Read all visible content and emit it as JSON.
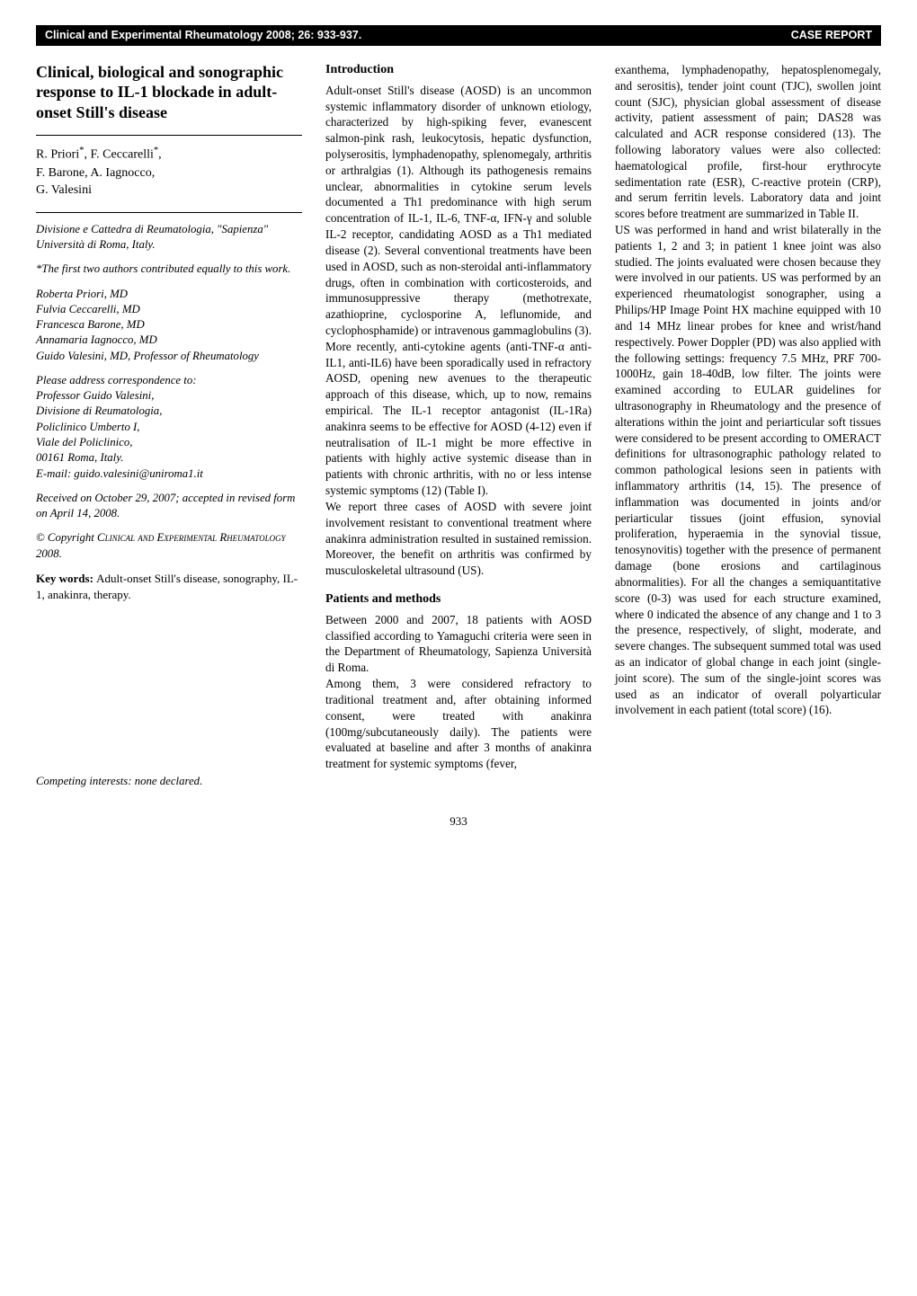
{
  "header": {
    "left": "Clinical and Experimental Rheumatology 2008; 26: 933-937.",
    "right": "CASE REPORT"
  },
  "title": "Clinical, biological and sonographic response to IL-1 blockade in adult-onset Still's disease",
  "authors": "R. Priori*, F. Ceccarelli*, F. Barone, A. Iagnocco, G. Valesini",
  "affiliation": "Divisione e Cattedra di Reumatologia, \"Sapienza\" Università di Roma, Italy.",
  "equal_contrib": "*The first two authors contributed equally to this work.",
  "name_lines": {
    "a": "Roberta Priori, MD",
    "b": "Fulvia Ceccarelli, MD",
    "c": "Francesca Barone, MD",
    "d": "Annamaria Iagnocco, MD",
    "e": "Guido Valesini, MD, Professor of Rheumatology"
  },
  "correspondence": {
    "intro": "Please address correspondence to:",
    "name": "Professor Guido Valesini,",
    "l1": "Divisione di Reumatologia,",
    "l2": "Policlinico Umberto I,",
    "l3": "Viale del Policlinico,",
    "l4": "00161 Roma, Italy.",
    "email": "E-mail: guido.valesini@uniroma1.it"
  },
  "received": "Received on October 29, 2007; accepted in revised form on April 14, 2008.",
  "copyright_prefix": "© Copyright ",
  "copyright_sc": "Clinical and Experimental Rheumatology ",
  "copyright_year": "2008.",
  "keywords_label": "Key words: ",
  "keywords_text": "Adult-onset Still's disease, sonography, IL-1, anakinra, therapy.",
  "competing": "Competing interests: none declared.",
  "intro_heading": "Introduction",
  "intro_body_1": "Adult-onset Still's disease (AOSD) is an uncommon systemic inflammatory disorder of unknown etiology, characterized by high-spiking fever, evanescent salmon-pink rash, leukocytosis, hepatic dysfunction, polyserositis, lymphadenopathy, splenomegaly, arthritis or arthralgias (1). Although its pathogenesis remains unclear, abnormalities in cytokine serum levels documented a Th1 predominance with high serum concentration of IL-1, IL-6, TNF-α, IFN-γ and soluble IL-2 receptor, candidating AOSD as a Th1 mediated disease (2). Several conventional treatments have been used in AOSD, such as non-steroidal anti-inflammatory drugs, often in combination with corticosteroids, and immunosuppressive therapy (methotrexate, azathioprine, cyclosporine A, leflunomide, and cyclophosphamide) or intravenous gammaglobulins (3). More recently, anti-cytokine agents (anti-TNF-α anti-IL1, anti-IL6) have been sporadically used in refractory AOSD, opening new avenues to the therapeutic approach of this disease, which, up to now, remains empirical. The IL-1 receptor antagonist (IL-1Ra) anakinra seems to be effective for AOSD (4-12) even if neutralisation of IL-1 might be more effective in patients with highly active systemic disease than in patients with chronic arthritis, with no or less intense systemic symptoms (12) (Table I).",
  "intro_body_2": "We report three cases of AOSD with severe joint involvement resistant to conventional treatment where anakinra administration resulted in sustained remission. Moreover, the benefit on arthritis was confirmed by musculoskeletal ultrasound (US).",
  "methods_heading": "Patients and methods",
  "methods_body_1": "Between 2000 and 2007, 18 patients with AOSD classified according to Yamaguchi criteria were seen in the Department of Rheumatology, Sapienza Università di Roma.",
  "methods_body_2": "Among them, 3 were considered refractory to traditional treatment and, after obtaining informed consent, were treated with anakinra (100mg/subcutaneously daily). The patients were evaluated at baseline and after 3 months of anakinra treatment for systemic symptoms (fever,",
  "col3_body_1": "exanthema, lymphadenopathy, hepatosplenomegaly, and serositis), tender joint count (TJC), swollen joint count (SJC), physician global assessment of disease activity, patient assessment of pain; DAS28 was calculated and ACR response considered (13). The following laboratory values were also collected: haematological profile, first-hour erythrocyte sedimentation rate (ESR), C-reactive protein (CRP), and serum ferritin levels. Laboratory data and joint scores before treatment are summarized in Table II.",
  "col3_body_2": "US was performed in hand and wrist bilaterally in the patients 1, 2 and 3; in patient 1 knee joint was also studied. The joints evaluated were chosen because they were involved in our patients. US was performed by an experienced rheumatologist sonographer, using a Philips/HP Image Point HX machine equipped with 10 and 14 MHz linear probes for knee and wrist/hand respectively. Power Doppler (PD) was also applied with the following settings: frequency 7.5 MHz, PRF 700-1000Hz, gain 18-40dB, low filter. The joints were examined according to EULAR guidelines for ultrasonography in Rheumatology and the presence of alterations within the joint and periarticular soft tissues were considered to be present according to OMERACT definitions for ultrasonographic pathology related to common pathological lesions seen in patients with inflammatory arthritis (14, 15). The presence of inflammation was documented in joints and/or periarticular tissues (joint effusion, synovial proliferation, hyperaemia in the synovial tissue, tenosynovitis) together with the presence of permanent damage (bone erosions and cartilaginous abnormalities). For all the changes a semiquantitative score (0-3) was used for each structure examined, where 0 indicated the absence of any change and 1 to 3 the presence, respectively, of slight, moderate, and severe changes. The subsequent summed total was used as an indicator of global change in each joint (single-joint score). The sum of the single-joint scores was used as an indicator of overall polyarticular involvement in each patient (total score) (16).",
  "page_number": "933"
}
